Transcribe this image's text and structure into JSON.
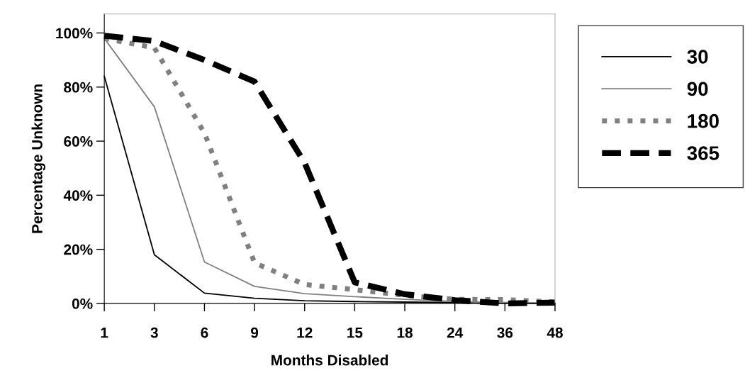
{
  "chart_data": {
    "type": "line",
    "xlabel": "Months Disabled",
    "ylabel": "Percentage Unknown",
    "categories": [
      "1",
      "3",
      "6",
      "9",
      "12",
      "15",
      "18",
      "24",
      "36",
      "48"
    ],
    "series": [
      {
        "name": "30",
        "color": "#000000",
        "line_style": "solid",
        "values": [
          84,
          18,
          3.8,
          1.9,
          1,
          0.7,
          0.5,
          0.3,
          0.1,
          0
        ]
      },
      {
        "name": "90",
        "color": "#808080",
        "line_style": "solid",
        "values": [
          98,
          72.7,
          15.3,
          6.3,
          3.6,
          2.5,
          1.5,
          0.7,
          0.3,
          0.2
        ]
      },
      {
        "name": "180",
        "color": "#808080",
        "line_style": "dotted",
        "values": [
          98,
          94.5,
          63,
          15,
          7,
          5.1,
          3,
          1.5,
          1.4,
          0.5
        ]
      },
      {
        "name": "365",
        "color": "#000000",
        "line_style": "dashed",
        "values": [
          99,
          97,
          90,
          82,
          52,
          7.8,
          3.4,
          1.2,
          0,
          0.3
        ]
      }
    ],
    "ylim": [
      0,
      107
    ],
    "yticks": [
      {
        "value": 0,
        "label": "0%"
      },
      {
        "value": 20,
        "label": "20%"
      },
      {
        "value": 40,
        "label": "40%"
      },
      {
        "value": 60,
        "label": "60%"
      },
      {
        "value": 80,
        "label": "80%"
      },
      {
        "value": 100,
        "label": "100%"
      }
    ],
    "grid": false,
    "legend": "right",
    "marker": "none"
  }
}
